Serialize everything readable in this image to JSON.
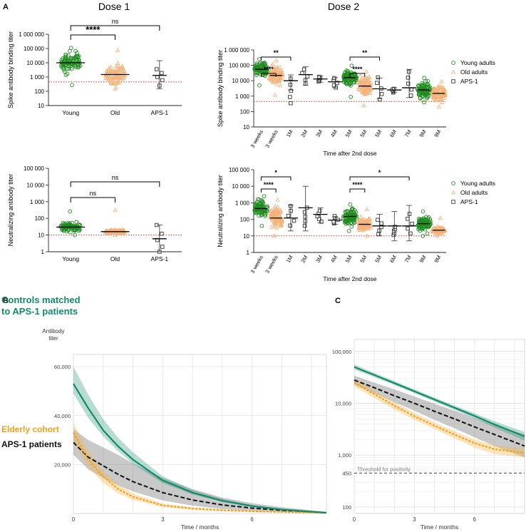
{
  "panel_labels": {
    "a": "A",
    "b": "B",
    "c": "C"
  },
  "dose_titles": {
    "dose1": "Dose 1",
    "dose2": "Dose 2"
  },
  "legend": [
    "Young adults",
    "Old adults",
    "APS-1"
  ],
  "colors": {
    "young": "#1e8c1e",
    "old": "#f5b27a",
    "aps1": "#333333",
    "threshold": "#e03030",
    "controls": "#138a6a",
    "elderly": "#f2a11c",
    "aps_line": "#111111"
  },
  "chart_data": [
    {
      "id": "a1",
      "type": "scatter",
      "title": "Dose 1",
      "ylabel": "Spike antibody binding titer",
      "yscale": "log",
      "ylim": [
        10,
        1000000
      ],
      "ytick_values": [
        10,
        100,
        1000,
        10000,
        100000,
        1000000
      ],
      "ytick_labels": [
        "10",
        "100",
        "1 000",
        "10 000",
        "100 000",
        "1 000 000"
      ],
      "categories": [
        "Young",
        "Old",
        "APS-1"
      ],
      "groups": [
        "young",
        "old",
        "aps1"
      ],
      "medians": [
        10000,
        1500,
        1300
      ],
      "ranges": [
        [
          280,
          110000
        ],
        [
          150,
          75000
        ],
        [
          150,
          14000
        ]
      ],
      "error_bars": [
        null,
        null,
        [
          150,
          14000
        ]
      ],
      "aps1_points": [
        3500,
        1900,
        1000,
        600,
        250
      ],
      "threshold": 450,
      "significance": [
        {
          "from": 0,
          "to": 1,
          "label": "****"
        },
        {
          "from": 0,
          "to": 2,
          "label": "ns"
        }
      ]
    },
    {
      "id": "a2",
      "type": "scatter",
      "title": "Dose 2",
      "ylabel": "Spike antibody binding titer",
      "xlabel": "Time after 2nd dose",
      "yscale": "log",
      "ylim": [
        10,
        1000000
      ],
      "ytick_values": [
        10,
        100,
        1000,
        10000,
        100000,
        1000000
      ],
      "ytick_labels": [
        "10",
        "100",
        "1 000",
        "10 000",
        "100 000",
        "1 000 000"
      ],
      "categories": [
        "3 weeks",
        "3 weeks",
        "1M",
        "2M",
        "3M",
        "4M",
        "5M",
        "5M",
        "5M",
        "6M",
        "7M",
        "9M",
        "9M"
      ],
      "groups": [
        "young",
        "old",
        "aps1",
        "aps1",
        "aps1",
        "aps1",
        "young",
        "old",
        "aps1",
        "aps1",
        "aps1",
        "young",
        "old"
      ],
      "medians": [
        55000,
        22000,
        10000,
        25000,
        13000,
        8500,
        16000,
        4500,
        3000,
        2500,
        3500,
        2500,
        1500
      ],
      "ranges": [
        [
          5000,
          250000
        ],
        [
          1200,
          200000
        ],
        [
          220,
          22000
        ],
        [
          5000,
          70000
        ],
        [
          8000,
          20000
        ],
        [
          3000,
          18000
        ],
        [
          900,
          95000
        ],
        [
          250,
          40000
        ],
        [
          400,
          25000
        ],
        [
          1600,
          3200
        ],
        [
          700,
          60000
        ],
        [
          400,
          15000
        ],
        [
          200,
          9000
        ]
      ],
      "error_bars": [
        null,
        null,
        [
          2500,
          24000
        ],
        [
          5000,
          80000
        ],
        [
          8000,
          20000
        ],
        [
          3500,
          16000
        ],
        null,
        null,
        [
          700,
          15000
        ],
        [
          1800,
          3500
        ],
        [
          800,
          55000
        ],
        null,
        null
      ],
      "threshold": 450,
      "legend": [
        "Young adults",
        "Old adults",
        "APS-1"
      ],
      "significance": [
        {
          "from": 0,
          "to": 1,
          "label": "****",
          "level": 0
        },
        {
          "from": 0,
          "to": 2,
          "label": "**",
          "level": 1
        },
        {
          "from": 6,
          "to": 7,
          "label": "****",
          "level": 0
        },
        {
          "from": 6,
          "to": 8,
          "label": "**",
          "level": 1
        }
      ]
    },
    {
      "id": "a3",
      "type": "scatter",
      "ylabel": "Neutralizing antibody titer",
      "yscale": "log",
      "ylim": [
        1,
        100000
      ],
      "ytick_values": [
        1,
        10,
        100,
        1000,
        10000,
        100000
      ],
      "ytick_labels": [
        "1",
        "10",
        "100",
        "1 000",
        "10 000",
        "100 000"
      ],
      "categories": [
        "Young",
        "Old",
        "APS-1"
      ],
      "groups": [
        "young",
        "old",
        "aps1"
      ],
      "medians": [
        30,
        16,
        6
      ],
      "ranges": [
        [
          10,
          260
        ],
        [
          10,
          320
        ],
        [
          1,
          40
        ]
      ],
      "error_bars": [
        null,
        null,
        [
          1,
          40
        ]
      ],
      "aps1_points": [
        40,
        12,
        5,
        2,
        1
      ],
      "threshold": 10,
      "significance": [
        {
          "from": 0,
          "to": 1,
          "label": "ns"
        },
        {
          "from": 0,
          "to": 2,
          "label": "ns"
        }
      ]
    },
    {
      "id": "a4",
      "type": "scatter",
      "ylabel": "Neutralizing antibody titer",
      "xlabel": "Time after 2nd dose",
      "yscale": "log",
      "ylim": [
        1,
        100000
      ],
      "ytick_values": [
        1,
        10,
        100,
        1000,
        10000,
        100000
      ],
      "ytick_labels": [
        "1",
        "10",
        "100",
        "1 000",
        "10 000",
        "100 000"
      ],
      "categories": [
        "3 weeks",
        "3 weeks",
        "1M",
        "2M",
        "3M",
        "4M",
        "5M",
        "5M",
        "5M",
        "6M",
        "7M",
        "9M",
        "9M"
      ],
      "groups": [
        "young",
        "old",
        "aps1",
        "aps1",
        "aps1",
        "aps1",
        "young",
        "old",
        "aps1",
        "aps1",
        "aps1",
        "young",
        "old"
      ],
      "medians": [
        450,
        120,
        120,
        500,
        200,
        90,
        150,
        50,
        40,
        40,
        40,
        55,
        22
      ],
      "ranges": [
        [
          40,
          2500
        ],
        [
          10,
          1500
        ],
        [
          30,
          900
        ],
        [
          30,
          700
        ],
        [
          60,
          400
        ],
        [
          50,
          180
        ],
        [
          20,
          800
        ],
        [
          10,
          400
        ],
        [
          10,
          120
        ],
        [
          10,
          40
        ],
        [
          10,
          300
        ],
        [
          10,
          300
        ],
        [
          10,
          120
        ]
      ],
      "error_bars": [
        null,
        null,
        [
          20,
          700
        ],
        [
          20,
          10000
        ],
        [
          60,
          500
        ],
        [
          50,
          150
        ],
        null,
        null,
        [
          10,
          200
        ],
        [
          5,
          300
        ],
        [
          5,
          700
        ],
        null,
        null
      ],
      "threshold": 10,
      "legend": [
        "Young adults",
        "Old adults",
        "APS-1"
      ],
      "significance": [
        {
          "from": 0,
          "to": 1,
          "label": "****",
          "level": 0
        },
        {
          "from": 0,
          "to": 2,
          "label": "*",
          "level": 1
        },
        {
          "from": 6,
          "to": 7,
          "label": "****",
          "level": 0
        },
        {
          "from": 6,
          "to": 10,
          "label": "*",
          "level": 1
        }
      ]
    },
    {
      "id": "b",
      "type": "line",
      "ylabel": "Antibody titer",
      "xlabel": "Time / months",
      "yscale": "linear",
      "xlim": [
        0,
        8.5
      ],
      "ylim": [
        0,
        65000
      ],
      "xticks": [
        0,
        3,
        6
      ],
      "yticks": [
        20000,
        40000,
        60000
      ],
      "ytick_labels": [
        "20,000",
        "40,000",
        "60,000"
      ],
      "series": [
        {
          "name": "Controls matched to APS-1 patients",
          "key": "controls",
          "style": "solid",
          "x": [
            0,
            0.5,
            1,
            1.5,
            2,
            3,
            4,
            5,
            6,
            7,
            8.5
          ],
          "y": [
            53000,
            43000,
            34000,
            27500,
            22000,
            13500,
            8500,
            5200,
            3000,
            1600,
            300
          ],
          "lower": [
            49000,
            39000,
            31500,
            25500,
            20300,
            12400,
            7800,
            4700,
            2700,
            1400,
            200
          ],
          "upper": [
            60000,
            48500,
            38500,
            31000,
            25000,
            15200,
            9600,
            6000,
            3500,
            1900,
            500
          ]
        },
        {
          "name": "Elderly cohort",
          "key": "elderly",
          "style": "dashed",
          "x": [
            0,
            0.5,
            1,
            1.5,
            2,
            3,
            4,
            5,
            6,
            7,
            8.5
          ],
          "y": [
            33000,
            22000,
            15000,
            10000,
            6800,
            3300,
            2000,
            1300,
            900,
            600,
            200
          ],
          "lower": [
            29000,
            19000,
            12500,
            8200,
            5500,
            2600,
            1500,
            1000,
            700,
            450,
            100
          ],
          "upper": [
            37000,
            25500,
            17500,
            12000,
            8200,
            4000,
            2500,
            1700,
            1200,
            800,
            300
          ]
        },
        {
          "name": "APS-1 patients",
          "key": "aps_line",
          "style": "dashed",
          "x": [
            0,
            0.5,
            1,
            1.5,
            2,
            3,
            4,
            5,
            6,
            7,
            8.5
          ],
          "y": [
            29000,
            23000,
            19500,
            16000,
            13000,
            8500,
            5500,
            3500,
            2200,
            1300,
            300
          ],
          "lower": [
            24000,
            18000,
            14500,
            11500,
            9000,
            5300,
            3200,
            1800,
            1000,
            500,
            100
          ],
          "upper": [
            34500,
            30000,
            27000,
            24000,
            20500,
            14500,
            10000,
            6500,
            4200,
            2600,
            600
          ]
        }
      ]
    },
    {
      "id": "c",
      "type": "line",
      "xlabel": "Time / months",
      "yscale": "log",
      "xlim": [
        0,
        8.5
      ],
      "ylim": [
        75,
        170000
      ],
      "xticks": [
        0,
        3,
        6
      ],
      "yticks": [
        100,
        1000,
        10000,
        100000
      ],
      "ytick_labels": [
        "100",
        "1,000",
        "10,000",
        "100,000"
      ],
      "threshold": 450,
      "threshold_label": "450",
      "threshold_text": "Threshold for positivity",
      "series": [
        {
          "name": "Controls",
          "key": "controls",
          "style": "solid",
          "x": [
            0,
            1,
            2,
            3,
            4,
            5,
            6,
            7,
            8.5
          ],
          "y": [
            50000,
            35000,
            24500,
            17000,
            11800,
            8200,
            5700,
            3900,
            2300
          ],
          "lower": [
            45000,
            32000,
            22500,
            15700,
            10800,
            7500,
            5100,
            3400,
            1900
          ],
          "upper": [
            56000,
            38500,
            26800,
            18500,
            12900,
            9000,
            6400,
            4500,
            2800
          ]
        },
        {
          "name": "Elderly",
          "key": "elderly",
          "style": "dashed",
          "x": [
            0,
            1,
            2,
            3,
            4,
            5,
            6,
            7,
            8.5
          ],
          "y": [
            25000,
            15000,
            9000,
            5600,
            3700,
            2500,
            1700,
            1300,
            1100
          ],
          "lower": [
            21000,
            12500,
            7600,
            4800,
            3200,
            2100,
            1400,
            1050,
            900
          ],
          "upper": [
            30000,
            17500,
            10500,
            6500,
            4300,
            2900,
            2000,
            1550,
            1350
          ]
        },
        {
          "name": "APS-1",
          "key": "aps_line",
          "style": "dashed",
          "x": [
            0,
            1,
            2,
            3,
            4,
            5,
            6,
            7,
            8.5
          ],
          "y": [
            28000,
            20000,
            14000,
            10000,
            7000,
            5000,
            3500,
            2500,
            1500
          ],
          "lower": [
            23000,
            15500,
            10500,
            7200,
            4800,
            3300,
            2200,
            1500,
            900
          ],
          "upper": [
            34000,
            25000,
            18500,
            13500,
            9800,
            7200,
            5200,
            3800,
            2500
          ]
        }
      ]
    }
  ]
}
